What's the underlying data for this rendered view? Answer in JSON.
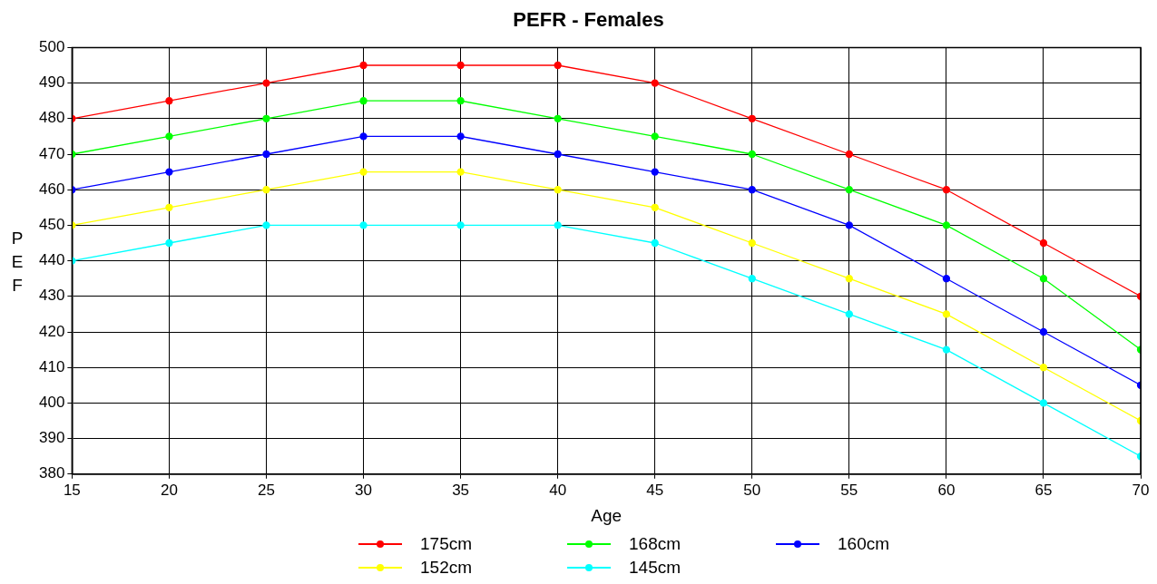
{
  "chart_data": {
    "type": "line",
    "title": "PEFR - Females",
    "xlabel": "Age",
    "ylabel": "PEF",
    "x": [
      15,
      20,
      25,
      30,
      35,
      40,
      45,
      50,
      55,
      60,
      65,
      70
    ],
    "xlim": [
      15,
      70
    ],
    "xticks": [
      15,
      20,
      25,
      30,
      35,
      40,
      45,
      50,
      55,
      60,
      65,
      70
    ],
    "ylim": [
      380,
      500
    ],
    "yticks": [
      380,
      390,
      400,
      410,
      420,
      430,
      440,
      450,
      460,
      470,
      480,
      490,
      500
    ],
    "grid": true,
    "legend": "bottom",
    "marker": "circle",
    "line_style": "solid",
    "series": [
      {
        "name": "175cm",
        "color": "#ff0000",
        "values": [
          480,
          485,
          490,
          495,
          495,
          495,
          490,
          480,
          470,
          460,
          445,
          430
        ]
      },
      {
        "name": "168cm",
        "color": "#00ff00",
        "values": [
          470,
          475,
          480,
          485,
          485,
          480,
          475,
          470,
          460,
          450,
          435,
          415
        ]
      },
      {
        "name": "160cm",
        "color": "#0000ff",
        "values": [
          460,
          465,
          470,
          475,
          475,
          470,
          465,
          460,
          450,
          435,
          420,
          405
        ]
      },
      {
        "name": "152cm",
        "color": "#ffff00",
        "values": [
          450,
          455,
          460,
          465,
          465,
          460,
          455,
          445,
          435,
          425,
          410,
          395
        ]
      },
      {
        "name": "145cm",
        "color": "#00ffff",
        "values": [
          440,
          445,
          450,
          450,
          450,
          450,
          445,
          435,
          425,
          415,
          400,
          385
        ]
      }
    ]
  }
}
